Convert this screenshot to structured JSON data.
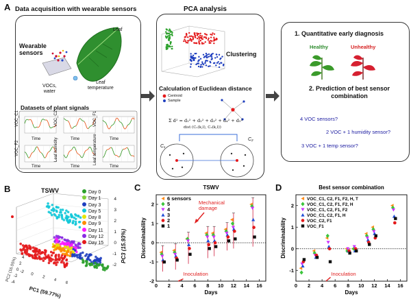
{
  "panels": {
    "A": {
      "letter": "A",
      "box1": {
        "title": "Data acquisition with wearable sensors",
        "label_wearable_sensors": "Wearable\nsensors",
        "label_leaf": "Leaf",
        "label_vocs_water": "VOCs,\nwater",
        "label_leaf_temperature": "Leaf\ntemperature",
        "datasets_title": "Datasets of plant signals",
        "subplots": [
          {
            "ylabel": "VOC_C1",
            "xlabel": "Time"
          },
          {
            "ylabel": "VOC_C2",
            "xlabel": "Time"
          },
          {
            "ylabel": "VOC_F1",
            "xlabel": "Time"
          },
          {
            "ylabel": "VOC_F2",
            "xlabel": "Time"
          },
          {
            "ylabel": "Leaf humidity",
            "xlabel": "Time"
          },
          {
            "ylabel": "Leaf temperature",
            "xlabel": "Time"
          }
        ]
      },
      "box2": {
        "title": "PCA analysis",
        "clustering": "Clustering",
        "euclid_title": "Calculation of Euclidean distance",
        "legend_centroid": "Centroid",
        "legend_sample": "Sample",
        "formula": "Σ d² = d₁² + d₂² + d₃² + d₄² + d₅²",
        "formula2": "dist (C₁(k,l), C₂(k,l))",
        "cluster1": "C₁",
        "cluster2": "C₂"
      },
      "box3": {
        "step1": "1. Quantitative early diagnosis",
        "healthy": "Healthy",
        "unhealthy": "Unhealthy",
        "step2": "2. Prediction of best sensor combination",
        "opt1": "4 VOC sensors?",
        "opt2": "2 VOC + 1 humidity sensor?",
        "opt3": "3 VOC + 1 temp sensor?"
      }
    },
    "B": {
      "letter": "B",
      "title": "TSWV",
      "axis_x": "PC1 (59.77%)",
      "axis_y": "PC2 (16.05%)",
      "axis_z": "PC3 (15.93%)",
      "legend": [
        {
          "label": "Day 0",
          "color": "#2ca02c"
        },
        {
          "label": "Day 1",
          "color": "#7fd13b"
        },
        {
          "label": "Day 3",
          "color": "#1f3fbf"
        },
        {
          "label": "Day 5",
          "color": "#12c8d8"
        },
        {
          "label": "Day 8",
          "color": "#e6e600"
        },
        {
          "label": "Day 9",
          "color": "#ff8c00"
        },
        {
          "label": "Day 11",
          "color": "#ff1aff"
        },
        {
          "label": "Day 12",
          "color": "#8a2be2"
        },
        {
          "label": "Day 15",
          "color": "#e41a1c"
        }
      ],
      "z_ticks": [
        "4",
        "3",
        "2",
        "1",
        "0",
        "-1",
        "-2"
      ],
      "x_ticks": [
        "-2",
        "0",
        "2",
        "4",
        "6"
      ],
      "y_ticks": [
        "4",
        "2",
        "0",
        "-2",
        "-4"
      ]
    },
    "C": {
      "letter": "C",
      "annotations": {
        "mechanical": "Mechanical\ndamage",
        "inoculation": "Inoculation"
      }
    },
    "D": {
      "letter": "D",
      "annotations": {
        "inoculation": "Inoculation"
      }
    }
  },
  "chart_data": [
    {
      "type": "scatter",
      "title": "TSWV",
      "xlabel": "Days",
      "ylabel": "Discriminability",
      "xlim": [
        0,
        17
      ],
      "ylim": [
        -2,
        2.5
      ],
      "xticks": [
        0,
        2,
        4,
        6,
        8,
        10,
        12,
        14,
        16
      ],
      "yticks": [
        -2,
        -1,
        0,
        1,
        2
      ],
      "reference_line": 0,
      "legend_position": "top-left",
      "series": [
        {
          "name": "6 sensors",
          "color": "#ff8c1a",
          "marker": "triangle-left",
          "x": [
            1,
            3,
            5,
            8,
            9,
            11,
            12,
            15
          ],
          "y": [
            -0.5,
            -0.4,
            0.2,
            0.5,
            0.5,
            0.7,
            1.2,
            2.0
          ]
        },
        {
          "name": "5",
          "color": "#3cc43c",
          "marker": "diamond",
          "x": [
            1,
            3,
            5,
            8,
            9,
            11,
            12,
            15
          ],
          "y": [
            -0.6,
            -0.5,
            0.2,
            0.4,
            0.4,
            0.6,
            1.0,
            1.9
          ]
        },
        {
          "name": "4",
          "color": "#cc33ff",
          "marker": "triangle-down",
          "x": [
            1,
            3,
            5,
            8,
            9,
            11,
            12,
            15
          ],
          "y": [
            -0.7,
            -0.6,
            0.1,
            0.3,
            0.3,
            0.5,
            0.8,
            1.8
          ]
        },
        {
          "name": "3",
          "color": "#1f4ed8",
          "marker": "triangle-up",
          "x": [
            1,
            3,
            5,
            8,
            9,
            11,
            12,
            15
          ],
          "y": [
            -0.9,
            -0.7,
            -0.1,
            0.1,
            0.1,
            0.4,
            0.7,
            1.2
          ]
        },
        {
          "name": "2",
          "color": "#e41a1c",
          "marker": "circle",
          "x": [
            1,
            3,
            5,
            8,
            9,
            11,
            12,
            15
          ],
          "y": [
            -1.0,
            -0.8,
            -0.3,
            -0.1,
            0.0,
            0.3,
            0.6,
            0.8
          ]
        },
        {
          "name": "1",
          "color": "#111111",
          "marker": "square",
          "x": [
            1,
            3,
            5,
            8,
            9,
            11,
            12,
            15
          ],
          "y": [
            -1.0,
            -0.9,
            -0.6,
            -0.3,
            -0.2,
            0.1,
            0.2,
            0.3
          ]
        }
      ]
    },
    {
      "type": "scatter",
      "title": "Best sensor combination",
      "xlabel": "Days",
      "ylabel": "Discriminability",
      "xlim": [
        0,
        17
      ],
      "ylim": [
        -1.5,
        2.5
      ],
      "xticks": [
        0,
        2,
        4,
        6,
        8,
        10,
        12,
        14,
        16
      ],
      "yticks": [
        -1,
        0,
        1,
        2
      ],
      "reference_line": 0,
      "legend_position": "top-left",
      "series": [
        {
          "name": "VOC_C1, C2, F1, F2, H, T",
          "color": "#ff8c1a",
          "marker": "triangle-left",
          "x": [
            1,
            3,
            5,
            8,
            9,
            11,
            12,
            15
          ],
          "y": [
            -0.9,
            -0.1,
            0.5,
            0.0,
            0.0,
            0.7,
            1.0,
            2.0
          ]
        },
        {
          "name": "VOC_C1, C2, F1, F2, H",
          "color": "#3cc43c",
          "marker": "diamond",
          "x": [
            1,
            3,
            5,
            8,
            9,
            11,
            12,
            15
          ],
          "y": [
            -1.1,
            -0.2,
            0.6,
            -0.1,
            0.0,
            0.6,
            0.9,
            1.9
          ]
        },
        {
          "name": "VOC_C1, C2, F1, F2",
          "color": "#cc33ff",
          "marker": "triangle-down",
          "x": [
            1,
            3,
            5,
            8,
            9,
            11,
            12,
            15
          ],
          "y": [
            -0.7,
            -0.3,
            0.3,
            0.0,
            0.1,
            0.5,
            0.8,
            1.8
          ]
        },
        {
          "name": "VOC_C1, C2, F1, H",
          "color": "#1f4ed8",
          "marker": "triangle-up",
          "x": [
            1,
            3,
            5,
            8,
            9,
            11,
            12,
            15
          ],
          "y": [
            -0.8,
            -0.4,
            0.1,
            -0.1,
            -0.1,
            0.4,
            0.7,
            1.5
          ]
        },
        {
          "name": "VOC_C2, F1",
          "color": "#e41a1c",
          "marker": "circle",
          "x": [
            1,
            3,
            5,
            8,
            9,
            11,
            12,
            15
          ],
          "y": [
            -0.6,
            -0.3,
            0.0,
            -0.1,
            0.0,
            0.3,
            0.5,
            1.2
          ]
        },
        {
          "name": "VOC_F1",
          "color": "#111111",
          "marker": "square",
          "x": [
            1,
            3,
            5,
            8,
            9,
            11,
            12,
            15
          ],
          "y": [
            -0.5,
            -0.4,
            -0.6,
            -0.2,
            -0.1,
            0.2,
            0.6,
            1.4
          ]
        }
      ]
    }
  ]
}
